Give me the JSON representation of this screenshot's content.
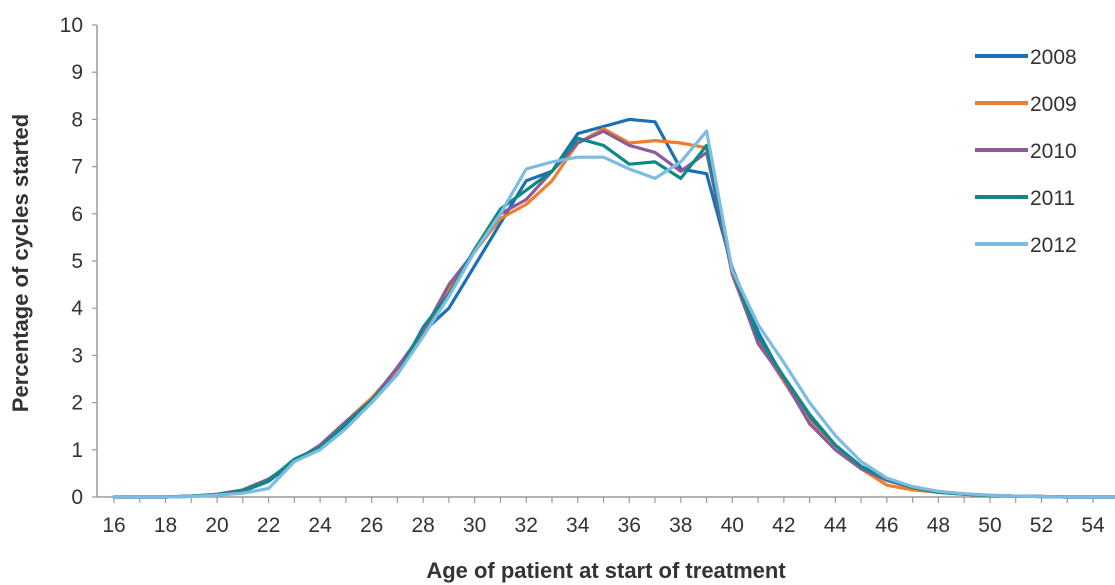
{
  "chart_data": {
    "type": "line",
    "title": "",
    "xlabel": "Age of patient at start of treatment",
    "ylabel": "Percentage of cycles started",
    "xlim": [
      16,
      55
    ],
    "ylim": [
      0,
      10
    ],
    "x_tick_labels": [
      "16",
      "18",
      "20",
      "22",
      "24",
      "26",
      "28",
      "30",
      "32",
      "34",
      "36",
      "38",
      "40",
      "42",
      "44",
      "46",
      "48",
      "50",
      "52",
      "54"
    ],
    "y_tick_labels": [
      "0",
      "1",
      "2",
      "3",
      "4",
      "5",
      "6",
      "7",
      "8",
      "9",
      "10"
    ],
    "grid": false,
    "legend_position": "top-right",
    "x": [
      16,
      17,
      18,
      19,
      20,
      21,
      22,
      23,
      24,
      25,
      26,
      27,
      28,
      29,
      30,
      31,
      32,
      33,
      34,
      35,
      36,
      37,
      38,
      39,
      40,
      41,
      42,
      43,
      44,
      45,
      46,
      47,
      48,
      49,
      50,
      51,
      52,
      53,
      54,
      55
    ],
    "series": [
      {
        "name": "2008",
        "color": "#1a6fb5",
        "values": [
          0,
          0,
          0,
          0.02,
          0.05,
          0.12,
          0.33,
          0.75,
          1.05,
          1.5,
          2.0,
          2.6,
          3.5,
          4.0,
          4.9,
          5.8,
          6.7,
          6.9,
          7.7,
          7.85,
          8.0,
          7.95,
          6.95,
          6.85,
          4.85,
          3.5,
          2.5,
          1.7,
          1.1,
          0.65,
          0.38,
          0.2,
          0.1,
          0.06,
          0.03,
          0.02,
          0.01,
          0,
          0,
          0
        ]
      },
      {
        "name": "2009",
        "color": "#ef7d2e",
        "values": [
          0,
          0,
          0,
          0.02,
          0.06,
          0.15,
          0.38,
          0.75,
          1.1,
          1.6,
          2.1,
          2.7,
          3.5,
          4.4,
          5.2,
          5.9,
          6.2,
          6.7,
          7.5,
          7.8,
          7.5,
          7.55,
          7.5,
          7.4,
          4.7,
          3.3,
          2.45,
          1.6,
          1.0,
          0.6,
          0.25,
          0.15,
          0.1,
          0.06,
          0.03,
          0.02,
          0.01,
          0,
          0,
          0
        ]
      },
      {
        "name": "2010",
        "color": "#8e5a9b",
        "values": [
          0,
          0,
          0,
          0.02,
          0.06,
          0.15,
          0.38,
          0.75,
          1.1,
          1.6,
          2.05,
          2.75,
          3.5,
          4.5,
          5.2,
          6.0,
          6.3,
          6.9,
          7.5,
          7.75,
          7.45,
          7.3,
          6.9,
          7.3,
          4.75,
          3.25,
          2.5,
          1.55,
          1.0,
          0.6,
          0.35,
          0.2,
          0.1,
          0.06,
          0.03,
          0.02,
          0.01,
          0,
          0,
          0
        ]
      },
      {
        "name": "2011",
        "color": "#0e8a86",
        "values": [
          0,
          0,
          0,
          0.02,
          0.05,
          0.13,
          0.35,
          0.8,
          1.05,
          1.55,
          2.05,
          2.6,
          3.6,
          4.3,
          5.25,
          6.1,
          6.5,
          6.9,
          7.6,
          7.45,
          7.05,
          7.1,
          6.75,
          7.45,
          4.8,
          3.4,
          2.55,
          1.75,
          1.1,
          0.65,
          0.38,
          0.2,
          0.1,
          0.06,
          0.03,
          0.02,
          0.01,
          0,
          0,
          0
        ]
      },
      {
        "name": "2012",
        "color": "#7cbce3",
        "values": [
          0,
          0,
          0,
          0.01,
          0.04,
          0.08,
          0.18,
          0.75,
          1.0,
          1.45,
          2.0,
          2.6,
          3.4,
          4.25,
          5.2,
          6.0,
          6.95,
          7.1,
          7.2,
          7.2,
          6.95,
          6.75,
          7.1,
          7.75,
          4.8,
          3.65,
          2.85,
          2.0,
          1.3,
          0.75,
          0.4,
          0.22,
          0.12,
          0.07,
          0.04,
          0.02,
          0.01,
          0,
          0,
          0
        ]
      }
    ]
  }
}
